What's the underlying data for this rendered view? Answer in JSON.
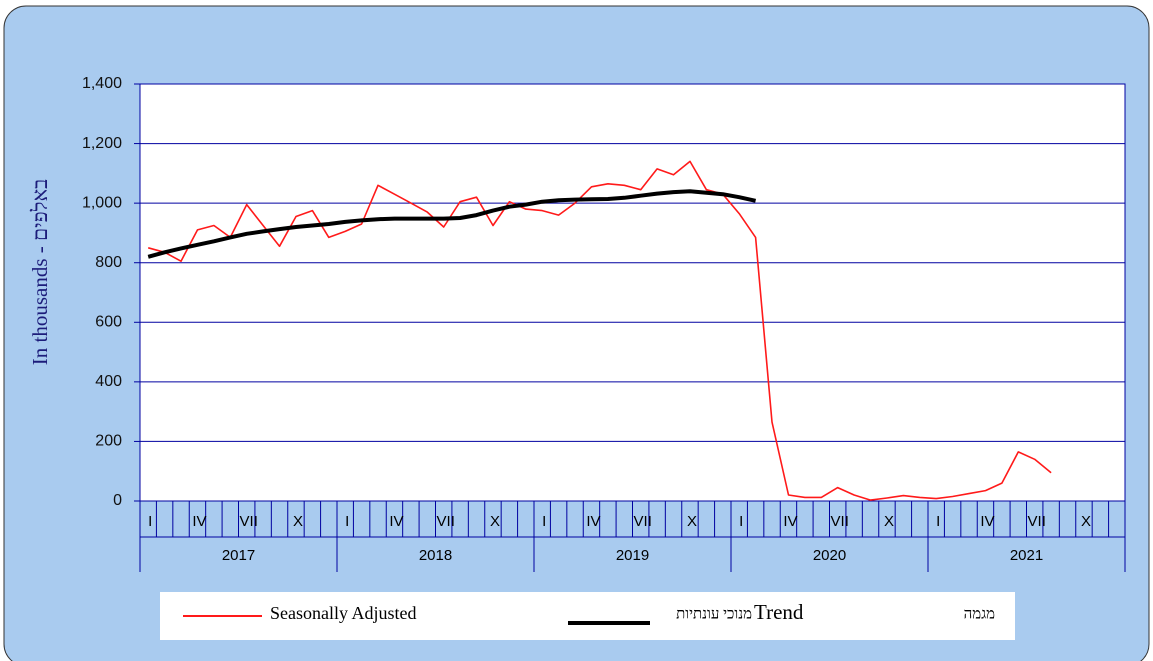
{
  "chart_data": {
    "type": "line",
    "ylabel": "In thousands - באלפים",
    "categories": [
      "I",
      null,
      null,
      "IV",
      null,
      null,
      "VII",
      null,
      null,
      "X",
      null,
      null,
      "I",
      null,
      null,
      "IV",
      null,
      null,
      "VII",
      null,
      null,
      "X",
      null,
      null,
      "I",
      null,
      null,
      "IV",
      null,
      null,
      "VII",
      null,
      null,
      "X",
      null,
      null,
      "I",
      null,
      null,
      "IV",
      null,
      null,
      "VII",
      null,
      null,
      "X",
      null,
      null,
      "I",
      null,
      null,
      "IV",
      null,
      null,
      "VII",
      null,
      null,
      "X",
      null,
      null
    ],
    "years": [
      "2017",
      "2018",
      "2019",
      "2020",
      "2021"
    ],
    "series": [
      {
        "name": "Seasonally Adjusted",
        "color": "#ff1a1a",
        "values": [
          850,
          835,
          805,
          910,
          925,
          885,
          995,
          925,
          855,
          955,
          975,
          885,
          905,
          930,
          1060,
          1030,
          1000,
          970,
          920,
          1005,
          1020,
          925,
          1005,
          980,
          975,
          960,
          1000,
          1055,
          1065,
          1060,
          1045,
          1115,
          1095,
          1140,
          1045,
          1030,
          965,
          885,
          265,
          20,
          12,
          12,
          45,
          20,
          3,
          10,
          18,
          12,
          8,
          15,
          25,
          35,
          60,
          165,
          140,
          95,
          null,
          null,
          null,
          null
        ]
      },
      {
        "name": "Trend",
        "color": "#000000",
        "values": [
          820,
          835,
          848,
          860,
          872,
          885,
          897,
          905,
          913,
          920,
          925,
          930,
          937,
          942,
          946,
          948,
          948,
          948,
          948,
          950,
          960,
          975,
          988,
          995,
          1005,
          1010,
          1012,
          1013,
          1014,
          1018,
          1025,
          1032,
          1037,
          1040,
          1035,
          1030,
          1020,
          1008,
          null,
          null,
          null,
          null,
          null,
          null,
          null,
          null,
          null,
          null,
          null,
          null,
          null,
          null,
          null,
          null,
          null,
          null,
          null,
          null,
          null,
          null
        ]
      }
    ],
    "legend_hebrew": [
      "מנוכי עונתיות",
      "מגמה"
    ],
    "ylim": [
      0,
      1400
    ],
    "yticks": [
      0,
      200,
      400,
      600,
      800,
      {
        "value": 1000,
        "label": "1,000"
      },
      {
        "value": 1200,
        "label": "1,200"
      },
      {
        "value": 1400,
        "label": "1,400"
      }
    ],
    "grid": true
  }
}
